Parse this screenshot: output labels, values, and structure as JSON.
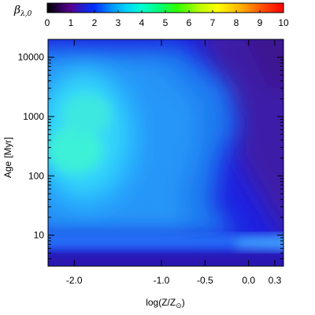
{
  "chart_data": {
    "type": "heatmap",
    "colorbar": {
      "label": "β",
      "label_subscript": "λ,0",
      "ticks": [
        "0",
        "1",
        "2",
        "3",
        "4",
        "5",
        "6",
        "7",
        "8",
        "9",
        "10"
      ],
      "range": [
        0,
        10
      ],
      "colormap": "rainbow (black-purple-blue-cyan-green-yellow-orange-red)"
    },
    "x_axis": {
      "label": "log(Z/Z",
      "label_sun": "⊙",
      "label_close": ")",
      "ticks": [
        "-2.0",
        "-1.0",
        "-0.5",
        "0.0",
        "0.3"
      ],
      "tick_values": [
        -2.0,
        -1.0,
        -0.5,
        0.0,
        0.3
      ],
      "range": [
        -2.3,
        0.4
      ]
    },
    "y_axis": {
      "label": "Age",
      "label_unit": "[Myr]",
      "ticks": [
        "10",
        "100",
        "1000",
        "10000"
      ],
      "tick_values": [
        10,
        100,
        1000,
        10000
      ],
      "range": [
        3,
        20000
      ],
      "scale": "log"
    },
    "field_summary": {
      "description": "beta values range from ~0.5 (purple, high age/high Z) to ~3.3 (cyan-green, ~100-1000 Myr at low Z)",
      "peak_region": {
        "log_z": -2.0,
        "age_myr": 200,
        "beta": 3.3
      },
      "min_region": {
        "log_z": 0.35,
        "age_myr": 15000,
        "beta": 0.5
      }
    }
  }
}
